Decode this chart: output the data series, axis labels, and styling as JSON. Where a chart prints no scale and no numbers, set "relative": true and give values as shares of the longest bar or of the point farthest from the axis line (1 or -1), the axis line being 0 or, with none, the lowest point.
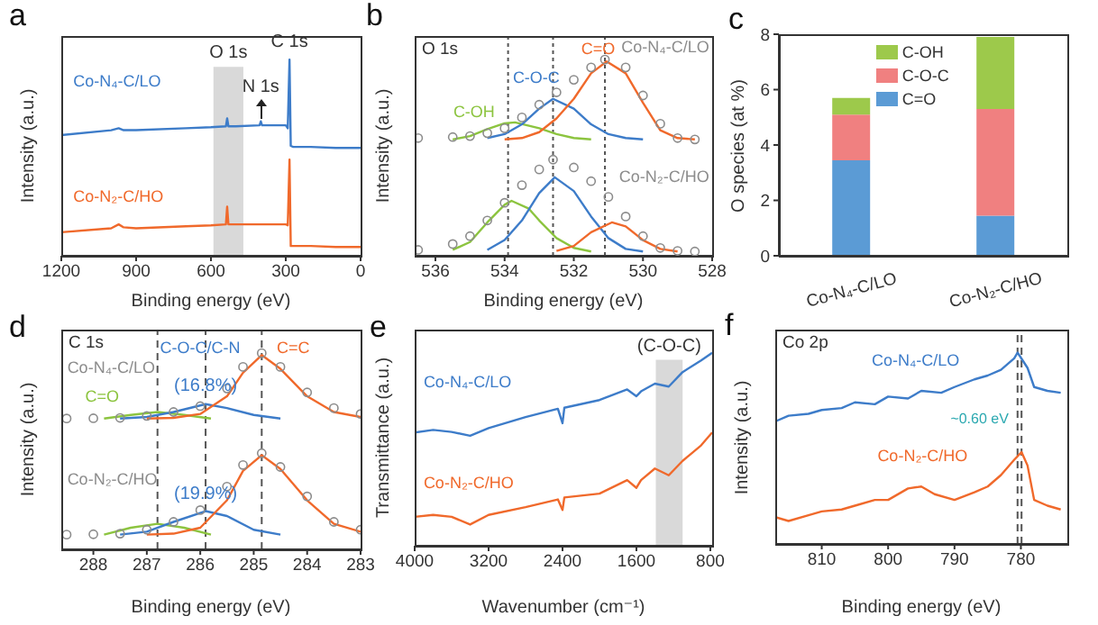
{
  "chart_data": [
    {
      "type": "line",
      "title": "a",
      "relative": true,
      "tick_labels": "x",
      "xlabel": "Binding energy (eV)",
      "ylabel": "Intensity (a.u.)",
      "xlim": [
        1200,
        0
      ],
      "xticks": [
        1200,
        900,
        600,
        300,
        0
      ],
      "x": [
        1200,
        1000,
        970,
        950,
        900,
        700,
        600,
        540,
        535,
        530,
        500,
        405,
        400,
        395,
        300,
        292,
        285,
        280,
        270,
        200,
        100,
        0
      ],
      "series": [
        {
          "name": "Co-N₄-C/LO",
          "color": "#3d7cc9",
          "values": [
            0.615,
            0.64,
            0.65,
            0.64,
            0.64,
            0.65,
            0.655,
            0.66,
            0.7,
            0.66,
            0.66,
            0.665,
            0.685,
            0.665,
            0.665,
            0.65,
            1.0,
            0.56,
            0.555,
            0.555,
            0.55,
            0.55
          ]
        },
        {
          "name": "Co-N₂-C/HO",
          "color": "#f0692b",
          "values": [
            0.12,
            0.14,
            0.16,
            0.145,
            0.14,
            0.15,
            0.155,
            0.16,
            0.25,
            0.16,
            0.16,
            0.16,
            0.16,
            0.16,
            0.16,
            0.155,
            0.49,
            0.05,
            0.05,
            0.05,
            0.045,
            0.045
          ]
        }
      ],
      "bands": [
        {
          "axis": "x",
          "from": 590,
          "to": 470,
          "label": "O 1s",
          "color": "#d9d9d9"
        }
      ],
      "annotations": [
        {
          "text": "C 1s",
          "x": 285,
          "y": 1.0
        },
        {
          "text": "N 1s",
          "x": 400,
          "y": 0.685
        }
      ]
    },
    {
      "type": "line",
      "title": "b",
      "subtitle": "O 1s",
      "relative": true,
      "tick_labels": "x",
      "xlabel": "Binding energy (eV)",
      "ylabel": "Intensity (a.u.)",
      "xlim": [
        536.6,
        528
      ],
      "xticks": [
        536,
        534,
        532,
        530,
        528
      ],
      "series": [
        {
          "type": "scatter",
          "marker": "circle",
          "name": "Co-N₄-C/LO",
          "color": "#8c8c8c",
          "x": [
            536.5,
            535.5,
            535,
            534.5,
            534,
            533.5,
            533,
            532.5,
            532,
            531.5,
            531.1,
            530.5,
            530,
            529.5,
            529,
            528.5
          ],
          "values": [
            0.6,
            0.605,
            0.61,
            0.625,
            0.65,
            0.705,
            0.77,
            0.833,
            0.897,
            0.96,
            1.0,
            0.96,
            0.817,
            0.673,
            0.6,
            0.593
          ]
        },
        {
          "name": "C-OH",
          "color": "#8cc43f",
          "x": [
            535.5,
            535,
            534.5,
            534,
            533.7,
            533,
            532.5,
            532,
            531.5
          ],
          "values": [
            0.593,
            0.61,
            0.645,
            0.675,
            0.68,
            0.65,
            0.62,
            0.6,
            0.593
          ]
        },
        {
          "name": "C-O-C",
          "color": "#3d7cc9",
          "x": [
            534.5,
            534,
            533.5,
            533,
            532.6,
            532,
            531.5,
            531,
            530.5,
            530
          ],
          "values": [
            0.6,
            0.62,
            0.67,
            0.75,
            0.8,
            0.75,
            0.67,
            0.62,
            0.6,
            0.593
          ]
        },
        {
          "name": "C=O",
          "color": "#f0692b",
          "x": [
            534,
            533.5,
            533,
            532.5,
            532,
            531.5,
            531.05,
            530.5,
            530,
            529.5,
            529,
            528.5
          ],
          "values": [
            0.593,
            0.6,
            0.63,
            0.7,
            0.8,
            0.93,
            0.99,
            0.93,
            0.78,
            0.64,
            0.6,
            0.593
          ]
        },
        {
          "type": "scatter",
          "marker": "circle",
          "name": "Co-N₂-C/HO",
          "color": "#8c8c8c",
          "x": [
            536.5,
            535.5,
            535,
            534.5,
            534,
            533.5,
            533,
            532.6,
            532,
            531.5,
            531,
            530.5,
            530,
            529.5,
            529,
            528.5
          ],
          "values": [
            0.03,
            0.06,
            0.1,
            0.18,
            0.27,
            0.36,
            0.44,
            0.49,
            0.45,
            0.38,
            0.3,
            0.2,
            0.1,
            0.04,
            0.025,
            0.022
          ]
        },
        {
          "color": "#8cc43f",
          "x": [
            535.5,
            535,
            534.5,
            534,
            533.8,
            533.3,
            533,
            532.5,
            532,
            531.5
          ],
          "values": [
            0.03,
            0.07,
            0.17,
            0.26,
            0.28,
            0.24,
            0.18,
            0.09,
            0.04,
            0.022
          ]
        },
        {
          "color": "#3d7cc9",
          "x": [
            534.5,
            534,
            533.5,
            533,
            532.55,
            532,
            531.5,
            531,
            530.5,
            530
          ],
          "values": [
            0.03,
            0.08,
            0.18,
            0.32,
            0.4,
            0.33,
            0.2,
            0.09,
            0.035,
            0.022
          ]
        },
        {
          "color": "#f0692b",
          "x": [
            532.5,
            532,
            531.5,
            530.9,
            530.5,
            530,
            529.5,
            529
          ],
          "values": [
            0.025,
            0.05,
            0.12,
            0.17,
            0.15,
            0.08,
            0.035,
            0.022
          ]
        }
      ],
      "ref_lines": [
        {
          "axis": "x",
          "value": 533.9,
          "line_style": "dotted"
        },
        {
          "axis": "x",
          "value": 532.6,
          "line_style": "dotted"
        },
        {
          "axis": "x",
          "value": 531.1,
          "line_style": "dotted"
        }
      ]
    },
    {
      "type": "bar",
      "title": "c",
      "stacked": true,
      "ylabel": "O species (at %)",
      "categories": [
        "Co-N₄-C/LO",
        "Co-N₂-C/HO"
      ],
      "ylim": [
        0,
        8
      ],
      "yticks": [
        0,
        2,
        4,
        6,
        8
      ],
      "legend": "top",
      "series": [
        {
          "name": "C=O",
          "color": "#5b9bd5",
          "values": [
            3.45,
            1.45
          ]
        },
        {
          "name": "C-O-C",
          "color": "#f08080",
          "values": [
            1.65,
            3.85
          ]
        },
        {
          "name": "C-OH",
          "color": "#9dc94b",
          "values": [
            0.6,
            2.6
          ]
        }
      ]
    },
    {
      "type": "line",
      "title": "d",
      "subtitle": "C 1s",
      "relative": true,
      "tick_labels": "x",
      "xlabel": "Binding energy (eV)",
      "ylabel": "Intensity (a.u.)",
      "xlim": [
        288.6,
        283
      ],
      "xticks": [
        288,
        287,
        286,
        285,
        284,
        283
      ],
      "series": [
        {
          "type": "scatter",
          "marker": "circle",
          "name": "Co-N₄-C/LO",
          "color": "#8c8c8c",
          "x": [
            288.5,
            288,
            287.5,
            287,
            286.5,
            286,
            285.5,
            285.2,
            284.85,
            284.5,
            284,
            283.5,
            283
          ],
          "values": [
            0.667,
            0.668,
            0.67,
            0.68,
            0.7,
            0.73,
            0.82,
            0.93,
            1.0,
            0.93,
            0.8,
            0.72,
            0.69
          ]
        },
        {
          "name": "C=O",
          "color": "#8cc43f",
          "x": [
            287.8,
            287.3,
            286.8,
            286.3,
            285.8
          ],
          "values": [
            0.667,
            0.685,
            0.7,
            0.685,
            0.667
          ]
        },
        {
          "name": "C-O-C/C-N",
          "color": "#3d7cc9",
          "x": [
            287.5,
            287,
            286.5,
            285.9,
            285.5,
            285,
            284.5
          ],
          "values": [
            0.667,
            0.675,
            0.7,
            0.74,
            0.72,
            0.685,
            0.667
          ]
        },
        {
          "name": "C=C",
          "color": "#f0692b",
          "x": [
            287,
            286.5,
            286,
            285.5,
            285.2,
            284.85,
            284.5,
            284,
            283.5,
            283
          ],
          "values": [
            0.667,
            0.67,
            0.69,
            0.78,
            0.9,
            0.99,
            0.92,
            0.78,
            0.7,
            0.675
          ]
        },
        {
          "type": "scatter",
          "marker": "circle",
          "name": "Co-N₂-C/HO",
          "color": "#8c8c8c",
          "x": [
            288.5,
            288,
            287.5,
            287,
            286.5,
            286,
            285.5,
            285.2,
            284.85,
            284.5,
            284,
            283.5,
            283
          ],
          "values": [
            0.075,
            0.077,
            0.08,
            0.1,
            0.14,
            0.2,
            0.32,
            0.43,
            0.49,
            0.42,
            0.27,
            0.14,
            0.1
          ]
        },
        {
          "color": "#8cc43f",
          "x": [
            287.8,
            287.3,
            286.8,
            286.3,
            285.8
          ],
          "values": [
            0.075,
            0.11,
            0.13,
            0.11,
            0.075
          ]
        },
        {
          "color": "#3d7cc9",
          "x": [
            287.5,
            287,
            286.5,
            285.9,
            285.5,
            285,
            284.5
          ],
          "values": [
            0.075,
            0.09,
            0.14,
            0.195,
            0.17,
            0.1,
            0.075
          ]
        },
        {
          "color": "#f0692b",
          "x": [
            287,
            286.5,
            286,
            285.5,
            285.2,
            284.85,
            284.5,
            284,
            283.5,
            283
          ],
          "values": [
            0.075,
            0.08,
            0.11,
            0.25,
            0.4,
            0.48,
            0.41,
            0.25,
            0.13,
            0.09
          ]
        }
      ],
      "ref_lines": [
        {
          "axis": "x",
          "value": 286.8,
          "line_style": "dashed"
        },
        {
          "axis": "x",
          "value": 285.9,
          "line_style": "dashed"
        },
        {
          "axis": "x",
          "value": 284.85,
          "line_style": "dashed"
        }
      ],
      "annotations": [
        {
          "text": "(16.8%)",
          "x": 285.9,
          "y": 0.74
        },
        {
          "text": "(19.9%)",
          "x": 285.9,
          "y": 0.195
        }
      ]
    },
    {
      "type": "line",
      "title": "e",
      "relative": true,
      "tick_labels": "x",
      "xlabel": "Wavenumber (cm⁻¹)",
      "ylabel": "Transmittance (a.u.)",
      "xlim": [
        4000,
        780
      ],
      "xticks": [
        4000,
        3200,
        2400,
        1600,
        800
      ],
      "x": [
        4000,
        3800,
        3600,
        3400,
        3200,
        2800,
        2450,
        2400,
        2380,
        2000,
        1700,
        1600,
        1550,
        1400,
        1250,
        1100,
        900,
        780
      ],
      "series": [
        {
          "name": "Co-N₄-C/LO",
          "color": "#3d7cc9",
          "values": [
            0.587,
            0.6,
            0.59,
            0.57,
            0.61,
            0.667,
            0.71,
            0.635,
            0.715,
            0.755,
            0.81,
            0.775,
            0.8,
            0.84,
            0.825,
            0.9,
            0.96,
            1.0
          ]
        },
        {
          "name": "Co-N₂-C/HO",
          "color": "#f0692b",
          "values": [
            0.15,
            0.16,
            0.15,
            0.11,
            0.16,
            0.2,
            0.24,
            0.185,
            0.25,
            0.27,
            0.34,
            0.3,
            0.34,
            0.4,
            0.365,
            0.44,
            0.52,
            0.587
          ]
        }
      ],
      "bands": [
        {
          "axis": "x",
          "from": 1390,
          "to": 1100,
          "label": "(C-O-C)",
          "color": "#d9d9d9"
        }
      ]
    },
    {
      "type": "line",
      "title": "f",
      "subtitle": "Co 2p",
      "relative": true,
      "tick_labels": "x",
      "xlabel": "Binding energy (eV)",
      "ylabel": "Intensity (a.u.)",
      "xlim": [
        817,
        773
      ],
      "xticks": [
        810,
        800,
        790,
        780
      ],
      "series": [
        {
          "name": "Co-N₄-C/LO",
          "color": "#3d7cc9",
          "x": [
            817,
            815,
            812,
            810,
            807,
            805,
            802,
            800,
            797,
            795,
            792,
            790,
            787,
            785,
            783,
            781,
            780.5,
            779,
            778,
            776,
            774
          ],
          "values": [
            0.64,
            0.67,
            0.68,
            0.7,
            0.71,
            0.74,
            0.73,
            0.77,
            0.76,
            0.8,
            0.79,
            0.82,
            0.86,
            0.88,
            0.91,
            0.97,
            1.0,
            0.92,
            0.82,
            0.8,
            0.79
          ]
        },
        {
          "name": "Co-N₂-C/HO",
          "color": "#f0692b",
          "x": [
            817,
            815,
            812,
            810,
            807,
            805,
            802,
            800,
            797,
            795,
            793,
            790,
            787,
            785,
            783,
            781,
            779.9,
            779,
            778,
            776,
            774
          ],
          "values": [
            0.14,
            0.12,
            0.15,
            0.17,
            0.18,
            0.2,
            0.23,
            0.23,
            0.29,
            0.3,
            0.26,
            0.23,
            0.27,
            0.3,
            0.36,
            0.44,
            0.48,
            0.41,
            0.23,
            0.2,
            0.18
          ]
        }
      ],
      "ref_lines": [
        {
          "axis": "x",
          "value": 780.5,
          "line_style": "dashed"
        },
        {
          "axis": "x",
          "value": 779.9,
          "line_style": "dashed"
        }
      ],
      "annotations": [
        "~0.60 eV"
      ]
    }
  ]
}
